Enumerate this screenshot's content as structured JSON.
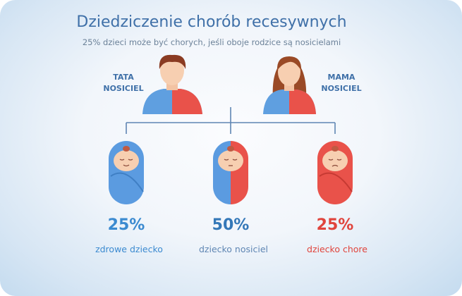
{
  "title": "Dziedziczenie chorób recesywnych",
  "subtitle": "25% dzieci może być chorych, jeśli oboje rodzice są nosicielami",
  "parents": [
    {
      "line1": "TATA",
      "line2": "NOSICIEL",
      "icon": "father-icon"
    },
    {
      "line1": "MAMA",
      "line2": "NOSICIEL",
      "icon": "mother-icon"
    }
  ],
  "children": [
    {
      "percent": "25%",
      "label": "zdrowe dziecko",
      "color": "#3b8ad0",
      "icon": "healthy-baby-icon"
    },
    {
      "percent": "50%",
      "label": "dziecko nosiciel",
      "color": "#3478b8",
      "icon": "carrier-baby-icon"
    },
    {
      "percent": "25%",
      "label": "dziecko chore",
      "color": "#e0443c",
      "icon": "sick-baby-icon"
    }
  ],
  "colors": {
    "title": "#3f70a8",
    "blue": "#5b9be0",
    "red": "#e9524a",
    "line": "#5f86b3"
  }
}
